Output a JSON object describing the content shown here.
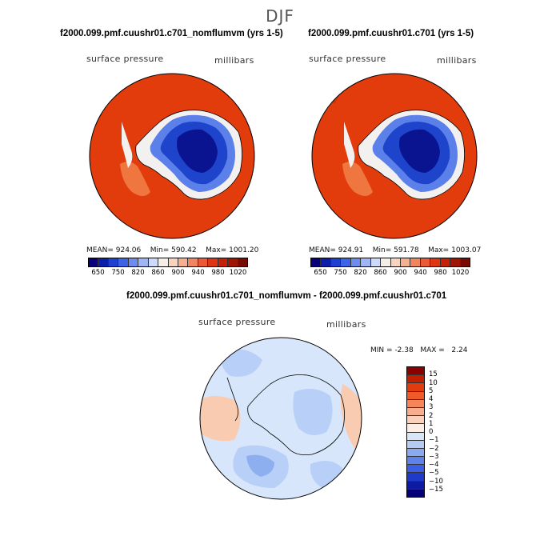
{
  "title": "DJF",
  "panels": {
    "left": {
      "title": "f2000.099.pmf.cuushr01.c701_nomflumvm (yrs 1-5)",
      "variable": "surface pressure",
      "units": "millibars",
      "mean_label": "MEAN=",
      "mean": "924.06",
      "min_label": "Min=",
      "min": "590.42",
      "max_label": "Max=",
      "max": "1001.20"
    },
    "right": {
      "title": "f2000.099.pmf.cuushr01.c701 (yrs 1-5)",
      "variable": "surface pressure",
      "units": "millibars",
      "mean_label": "MEAN=",
      "mean": "924.91",
      "min_label": "Min=",
      "min": "591.78",
      "max_label": "Max=",
      "max": "1003.07"
    },
    "diff": {
      "title": "f2000.099.pmf.cuushr01.c701_nomflumvm - f2000.099.pmf.cuushr01.c701",
      "variable": "surface pressure",
      "units": "millibars",
      "min_label": "MIN =",
      "min": "-2.38",
      "max_label": "MAX =",
      "max": "2.24"
    }
  },
  "colorbar_abs": {
    "tick_labels": [
      "650",
      "750",
      "820",
      "860",
      "900",
      "940",
      "980",
      "1020"
    ],
    "colors": [
      "#08007a",
      "#0b1ea8",
      "#1f3fcf",
      "#3d63e6",
      "#6d8cf0",
      "#9fb6f6",
      "#cddaf9",
      "#f5eee6",
      "#f9d3bd",
      "#f5b08f",
      "#f08660",
      "#ea5a36",
      "#de3512",
      "#c42108",
      "#a01606",
      "#780c04"
    ]
  },
  "colorbar_diff": {
    "tick_labels": [
      "15",
      "10",
      "5",
      "4",
      "3",
      "2",
      "1",
      "0",
      "−1",
      "−2",
      "−3",
      "−4",
      "−5",
      "−10",
      "−15"
    ],
    "colors": [
      "#8c0000",
      "#c21e02",
      "#e33a0e",
      "#f05a2a",
      "#f4865c",
      "#f7ae8e",
      "#fad2bc",
      "#fbeee4",
      "#d8e6fa",
      "#b4cbf6",
      "#8aaaf0",
      "#5d82eb",
      "#3b5fe4",
      "#1f3ac8",
      "#0d1aa2",
      "#050078"
    ]
  },
  "map_colors": {
    "ocean": "#e23c0c",
    "ocean_dark": "#cf2e08",
    "ice_deep": "#0a1490",
    "ice_mid": "#1e44cc",
    "ice_light": "#5b80ea",
    "coast_white": "#f3f0f0",
    "shelf_orange": "#f0763f",
    "diff_base": "#d7e6fb",
    "diff_neg1": "#b8cff7",
    "diff_neg2": "#8eafef",
    "diff_pos": "#f9ccb2"
  }
}
